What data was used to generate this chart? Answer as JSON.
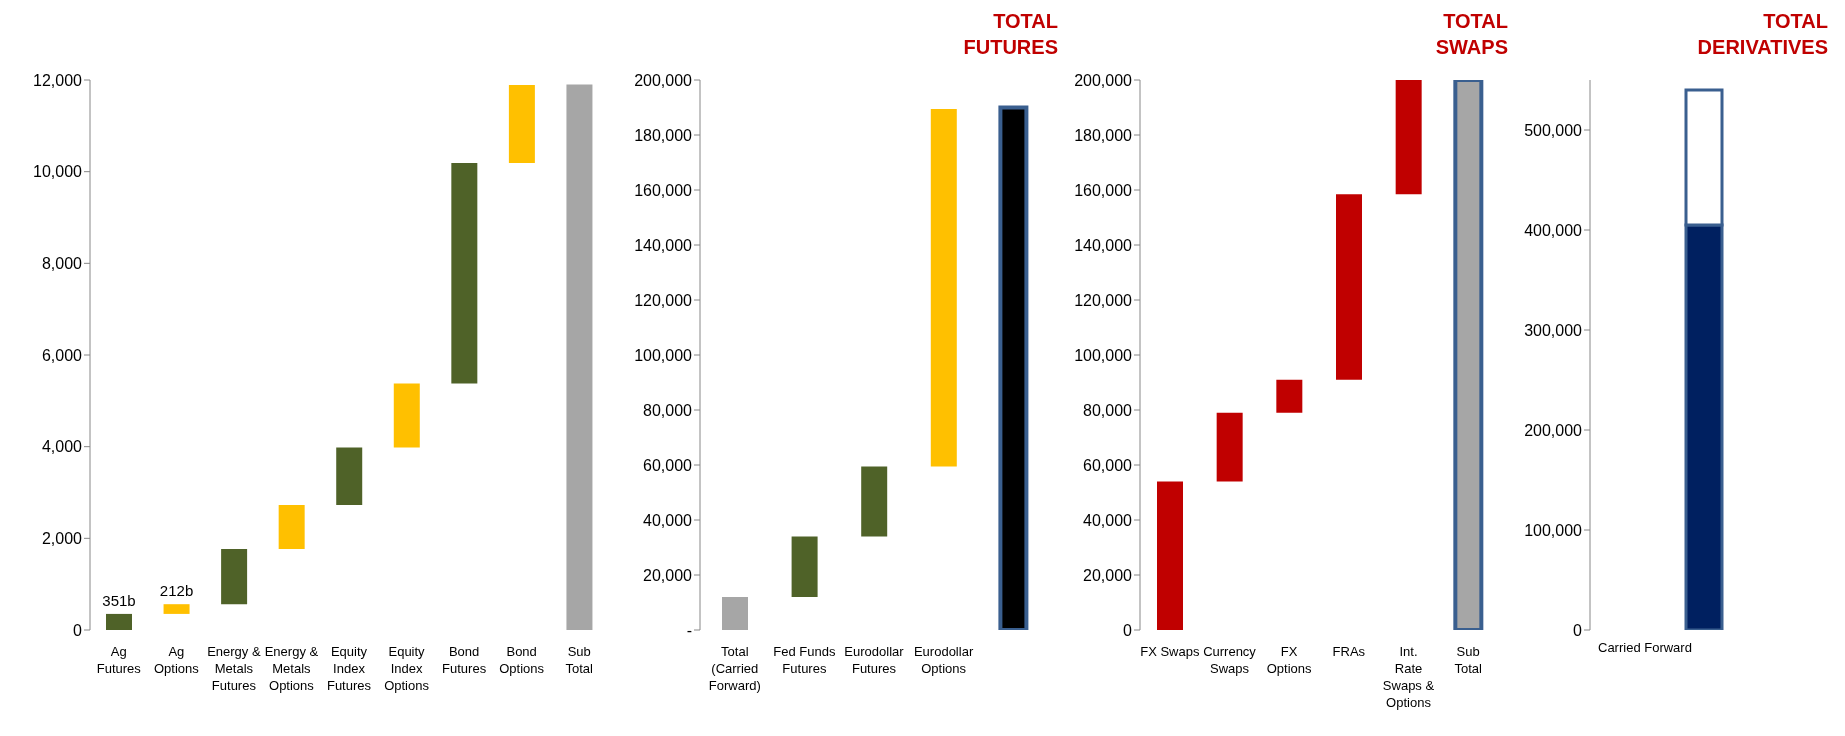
{
  "chart_data": [
    {
      "type": "bar",
      "categories": [
        "Ag Futures",
        "Ag Options",
        "Energy & Metals Futures",
        "Energy & Metals Options",
        "Equity Index Futures",
        "Equity Index Options",
        "Bond Futures",
        "Bond Options",
        "Sub Total"
      ],
      "values": [
        351,
        212,
        1210,
        960,
        1250,
        1400,
        4810,
        1700,
        11900
      ],
      "base": [
        0,
        351,
        560,
        1770,
        2730,
        3980,
        5380,
        10190,
        0
      ],
      "colors": [
        "#4f6228",
        "#ffc000",
        "#4f6228",
        "#ffc000",
        "#4f6228",
        "#ffc000",
        "#4f6228",
        "#ffc000",
        "#a6a6a6"
      ],
      "value_labels": [
        "351b",
        "212b",
        null,
        null,
        null,
        null,
        null,
        null,
        null
      ],
      "ylim": [
        0,
        12000
      ],
      "yticks": [
        {
          "value": 0,
          "label": "0"
        },
        {
          "value": 2000,
          "label": "2,000"
        },
        {
          "value": 4000,
          "label": "4,000"
        },
        {
          "value": 6000,
          "label": "6,000"
        },
        {
          "value": 8000,
          "label": "8,000"
        },
        {
          "value": 10000,
          "label": "10,000"
        },
        {
          "value": 12000,
          "label": "12,000"
        }
      ],
      "grid": false,
      "legend": false
    },
    {
      "type": "bar",
      "title": "TOTAL FUTURES",
      "categories": [
        "Total (Carried Forward)",
        "Fed Funds Futures",
        "Eurodollar Futures",
        "Eurodollar Options",
        null
      ],
      "values": [
        12000,
        22000,
        25500,
        130000,
        190000
      ],
      "base": [
        0,
        12000,
        34000,
        59500,
        0
      ],
      "colors": [
        "#a6a6a6",
        "#4f6228",
        "#4f6228",
        "#ffc000",
        "#000000"
      ],
      "ylim": [
        0,
        200000
      ],
      "yticks": [
        {
          "value": 0,
          "label": "-"
        },
        {
          "value": 20000,
          "label": "20,000"
        },
        {
          "value": 40000,
          "label": "40,000"
        },
        {
          "value": 60000,
          "label": "60,000"
        },
        {
          "value": 80000,
          "label": "80,000"
        },
        {
          "value": 100000,
          "label": "100,000"
        },
        {
          "value": 120000,
          "label": "120,000"
        },
        {
          "value": 140000,
          "label": "140,000"
        },
        {
          "value": 160000,
          "label": "160,000"
        },
        {
          "value": 180000,
          "label": "180,000"
        },
        {
          "value": 200000,
          "label": "200,000"
        }
      ],
      "grid": false,
      "legend": false
    },
    {
      "type": "bar",
      "title": "TOTAL SWAPS",
      "categories": [
        "FX Swaps",
        "Currency Swaps",
        "FX Options",
        "FRAs",
        "Int. Rate Swaps & Options",
        "Sub Total"
      ],
      "values": [
        54000,
        25000,
        12000,
        67500,
        41500,
        200000
      ],
      "base": [
        0,
        54000,
        79000,
        91000,
        158500,
        0
      ],
      "colors": [
        "#c00000",
        "#c00000",
        "#c00000",
        "#c00000",
        "#c00000",
        "#a6a6a6"
      ],
      "ylim": [
        0,
        200000
      ],
      "yticks": [
        {
          "value": 0,
          "label": "0"
        },
        {
          "value": 20000,
          "label": "20,000"
        },
        {
          "value": 40000,
          "label": "40,000"
        },
        {
          "value": 60000,
          "label": "60,000"
        },
        {
          "value": 80000,
          "label": "80,000"
        },
        {
          "value": 100000,
          "label": "100,000"
        },
        {
          "value": 120000,
          "label": "120,000"
        },
        {
          "value": 140000,
          "label": "140,000"
        },
        {
          "value": 160000,
          "label": "160,000"
        },
        {
          "value": 180000,
          "label": "180,000"
        },
        {
          "value": 200000,
          "label": "200,000"
        }
      ],
      "grid": false,
      "legend": false
    },
    {
      "type": "bar",
      "title": "TOTAL DERIVATIVES",
      "categories": [
        null
      ],
      "annotations": [
        "Carried Forward"
      ],
      "stacked": true,
      "series": [
        {
          "color": "#002060",
          "values": [
            405000
          ]
        },
        {
          "color": "#ffffff",
          "values": [
            135000
          ]
        }
      ],
      "ylim": [
        0,
        550000
      ],
      "yticks": [
        {
          "value": 0,
          "label": "0"
        },
        {
          "value": 100000,
          "label": "100,000"
        },
        {
          "value": 200000,
          "label": "200,000"
        },
        {
          "value": 300000,
          "label": "300,000"
        },
        {
          "value": 400000,
          "label": "400,000"
        },
        {
          "value": 500000,
          "label": "500,000"
        }
      ],
      "grid": false,
      "legend": false
    }
  ]
}
